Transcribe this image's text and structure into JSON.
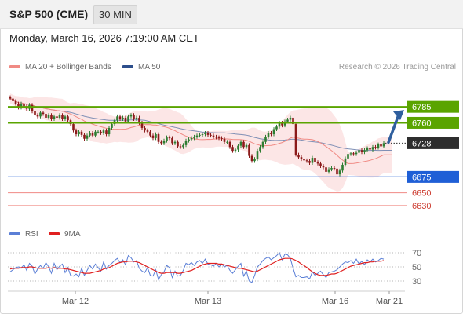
{
  "header": {
    "symbol": "S&P 500 (CME)",
    "timeframe": "30 MIN"
  },
  "datetime": "Monday, March 16, 2026 7:19:00 AM CET",
  "legend": {
    "ma20": {
      "label": "MA 20 + Bollinger Bands",
      "color": "#f08a84"
    },
    "ma50": {
      "label": "MA 50",
      "color": "#2d4f8c"
    },
    "rsi": {
      "label": "RSI",
      "color": "#5b7fd6"
    },
    "ma9": {
      "label": "9MA",
      "color": "#e02020"
    }
  },
  "credit": "Research © 2026 Trading Central",
  "colors": {
    "up": "#2e7d32",
    "down": "#8b1a1a",
    "resistance": "#5aa400",
    "support": "#1f5fd6",
    "target": "#f08a84",
    "current": "#2e2e2e",
    "arrow": "#2f5f9e"
  },
  "chart_data": [
    {
      "type": "candlestick",
      "ylim": [
        6620,
        6800
      ],
      "x_labels": [
        "Mar 12",
        "Mar 13",
        "Mar 16",
        "Mar 21"
      ],
      "levels": [
        {
          "name": "resistance-2",
          "value": 6785,
          "label": "6785",
          "kind": "resistance"
        },
        {
          "name": "resistance-1",
          "value": 6760,
          "label": "6760",
          "kind": "resistance"
        },
        {
          "name": "last-price",
          "value": 6728,
          "label": "6728",
          "kind": "current"
        },
        {
          "name": "support-1",
          "value": 6675,
          "label": "6675",
          "kind": "support"
        },
        {
          "name": "support-2",
          "value": 6650,
          "label": "6650",
          "kind": "target"
        },
        {
          "name": "support-3",
          "value": 6630,
          "label": "6630",
          "kind": "target"
        }
      ],
      "close": [
        6798,
        6794,
        6790,
        6784,
        6790,
        6786,
        6782,
        6788,
        6778,
        6772,
        6770,
        6776,
        6774,
        6768,
        6772,
        6766,
        6770,
        6768,
        6772,
        6766,
        6770,
        6764,
        6758,
        6748,
        6742,
        6746,
        6741,
        6735,
        6740,
        6744,
        6740,
        6746,
        6746,
        6744,
        6748,
        6742,
        6752,
        6758,
        6764,
        6770,
        6766,
        6768,
        6762,
        6770,
        6772,
        6766,
        6768,
        6760,
        6752,
        6748,
        6746,
        6740,
        6736,
        6742,
        6730,
        6728,
        6732,
        6737,
        6736,
        6728,
        6730,
        6723,
        6722,
        6725,
        6732,
        6734,
        6736,
        6738,
        6740,
        6741,
        6742,
        6744,
        6741,
        6740,
        6738,
        6737,
        6736,
        6735,
        6730,
        6730,
        6722,
        6716,
        6718,
        6724,
        6730,
        6722,
        6725,
        6708,
        6700,
        6703,
        6716,
        6722,
        6730,
        6738,
        6744,
        6742,
        6750,
        6754,
        6760,
        6756,
        6762,
        6765,
        6768,
        6758,
        6710,
        6706,
        6703,
        6701,
        6700,
        6697,
        6705,
        6698,
        6696,
        6692,
        6690,
        6683,
        6687,
        6689,
        6688,
        6679,
        6685,
        6694,
        6704,
        6711,
        6712,
        6711,
        6713,
        6717,
        6714,
        6717,
        6720,
        6718,
        6722,
        6721,
        6726,
        6723,
        6728
      ]
    },
    {
      "type": "line",
      "name": "RSI",
      "ylim": [
        20,
        80
      ],
      "y_ticks": [
        70,
        50,
        30
      ],
      "rsi": [
        43,
        46,
        49,
        50,
        48,
        53,
        45,
        55,
        51,
        40,
        47,
        52,
        48,
        56,
        50,
        41,
        55,
        46,
        51,
        54,
        42,
        49,
        38,
        37,
        40,
        36,
        48,
        38,
        45,
        52,
        47,
        54,
        49,
        44,
        57,
        47,
        52,
        55,
        59,
        62,
        56,
        60,
        53,
        66,
        63,
        57,
        59,
        48,
        44,
        42,
        49,
        38,
        37,
        46,
        32,
        39,
        43,
        52,
        49,
        35,
        44,
        37,
        38,
        45,
        55,
        53,
        56,
        52,
        57,
        59,
        55,
        61,
        54,
        53,
        51,
        55,
        50,
        54,
        50,
        52,
        45,
        41,
        46,
        51,
        55,
        37,
        44,
        30,
        28,
        38,
        50,
        54,
        59,
        62,
        64,
        60,
        63,
        66,
        70,
        60,
        68,
        67,
        62,
        48,
        36,
        38,
        35,
        35,
        36,
        33,
        43,
        38,
        41,
        44,
        39,
        35,
        42,
        43,
        44,
        46,
        50,
        54,
        57,
        56,
        59,
        55,
        61,
        54,
        58,
        53,
        60,
        57,
        61,
        57,
        59,
        62,
        61
      ],
      "ma9": [
        47,
        48,
        48,
        48,
        49,
        49,
        49,
        50,
        50,
        49,
        48,
        48,
        48,
        48,
        49,
        48,
        49,
        48,
        48,
        48,
        47,
        47,
        46,
        45,
        44,
        43,
        42,
        41,
        41,
        41,
        42,
        43,
        44,
        45,
        47,
        48,
        49,
        51,
        53,
        55,
        56,
        57,
        57,
        58,
        58,
        58,
        57,
        56,
        54,
        52,
        50,
        48,
        46,
        44,
        42,
        41,
        41,
        42,
        42,
        42,
        42,
        41,
        41,
        42,
        43,
        44,
        45,
        47,
        49,
        51,
        53,
        54,
        55,
        55,
        55,
        55,
        54,
        54,
        53,
        52,
        51,
        50,
        49,
        48,
        48,
        47,
        46,
        45,
        44,
        43,
        44,
        46,
        48,
        50,
        52,
        54,
        56,
        58,
        60,
        61,
        62,
        62,
        62,
        61,
        59,
        57,
        54,
        52,
        49,
        46,
        43,
        41,
        39,
        38,
        38,
        38,
        39,
        40,
        40,
        41,
        43,
        45,
        47,
        49,
        51,
        52,
        53,
        54,
        55,
        56,
        56,
        57,
        57,
        58,
        58,
        58,
        59
      ]
    }
  ]
}
